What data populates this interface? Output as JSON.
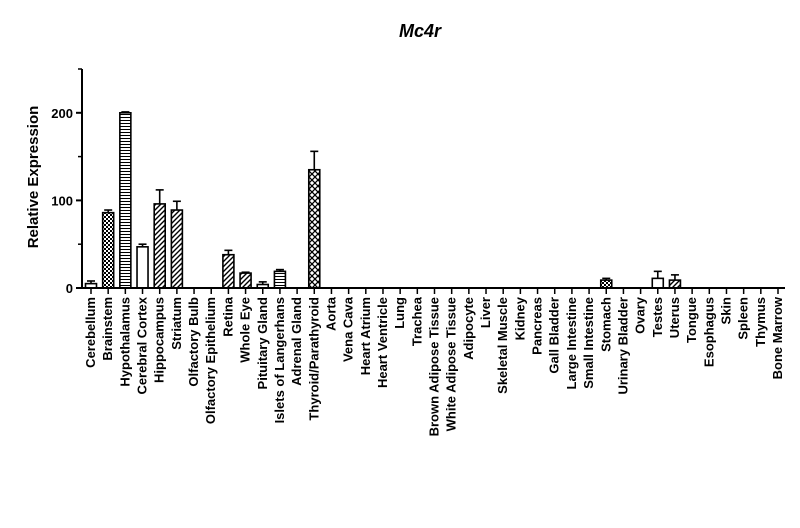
{
  "chart_data": {
    "type": "bar",
    "title": "Mc4r",
    "xlabel": "",
    "ylabel": "Relative Expression",
    "ylim": [
      0,
      250
    ],
    "yticks": [
      "0",
      "100",
      "200"
    ],
    "grid": false,
    "legend": "none",
    "categories": [
      {
        "name": "Cerebellum",
        "value": 5,
        "error": 3,
        "pattern": "plain"
      },
      {
        "name": "Brainstem",
        "value": 86,
        "error": 3,
        "pattern": "checker"
      },
      {
        "name": "Hypothalamus",
        "value": 200,
        "error": 1,
        "pattern": "hstripes"
      },
      {
        "name": "Cerebral Cortex",
        "value": 47,
        "error": 3,
        "pattern": "plain"
      },
      {
        "name": "Hippocampus",
        "value": 96,
        "error": 16,
        "pattern": "diag"
      },
      {
        "name": "Striatum",
        "value": 89,
        "error": 10,
        "pattern": "diag"
      },
      {
        "name": "Olfactory Bulb",
        "value": 0,
        "error": 0,
        "pattern": "plain"
      },
      {
        "name": "Olfactory Epithelium",
        "value": 0,
        "error": 0,
        "pattern": "plain"
      },
      {
        "name": "Retina",
        "value": 38,
        "error": 5,
        "pattern": "diag"
      },
      {
        "name": "Whole Eye",
        "value": 17,
        "error": 1,
        "pattern": "diag"
      },
      {
        "name": "Pituitary Gland",
        "value": 4,
        "error": 3,
        "pattern": "plain"
      },
      {
        "name": "Islets of Langerhans",
        "value": 19,
        "error": 2,
        "pattern": "hstripes"
      },
      {
        "name": "Adrenal Gland",
        "value": 0,
        "error": 0,
        "pattern": "plain"
      },
      {
        "name": "Thyroid/Parathyroid",
        "value": 135,
        "error": 21,
        "pattern": "cross"
      },
      {
        "name": "Aorta",
        "value": 0,
        "error": 0,
        "pattern": "plain"
      },
      {
        "name": "Vena Cava",
        "value": 0,
        "error": 0,
        "pattern": "plain"
      },
      {
        "name": "Heart Atrium",
        "value": 0,
        "error": 0,
        "pattern": "plain"
      },
      {
        "name": "Heart Ventricle",
        "value": 0,
        "error": 0,
        "pattern": "plain"
      },
      {
        "name": "Lung",
        "value": 0,
        "error": 0,
        "pattern": "plain"
      },
      {
        "name": "Trachea",
        "value": 0,
        "error": 0,
        "pattern": "plain"
      },
      {
        "name": "Brown Adipose Tissue",
        "value": 0,
        "error": 0,
        "pattern": "plain"
      },
      {
        "name": "White Adipose Tissue",
        "value": 0,
        "error": 0,
        "pattern": "plain"
      },
      {
        "name": "Adipocyte",
        "value": 0,
        "error": 0,
        "pattern": "plain"
      },
      {
        "name": "Liver",
        "value": 0,
        "error": 0,
        "pattern": "plain"
      },
      {
        "name": "Skeletal Muscle",
        "value": 0,
        "error": 0,
        "pattern": "plain"
      },
      {
        "name": "Kidney",
        "value": 0,
        "error": 0,
        "pattern": "plain"
      },
      {
        "name": "Pancreas",
        "value": 0,
        "error": 0,
        "pattern": "plain"
      },
      {
        "name": "Gall Bladder",
        "value": 0,
        "error": 0,
        "pattern": "plain"
      },
      {
        "name": "Large Intestine",
        "value": 0,
        "error": 0,
        "pattern": "plain"
      },
      {
        "name": "Small Intestine",
        "value": 0,
        "error": 0,
        "pattern": "plain"
      },
      {
        "name": "Stomach",
        "value": 9,
        "error": 2,
        "pattern": "checker"
      },
      {
        "name": "Urinary Bladder",
        "value": 0,
        "error": 0,
        "pattern": "plain"
      },
      {
        "name": "Ovary",
        "value": 0,
        "error": 0,
        "pattern": "plain"
      },
      {
        "name": "Testes",
        "value": 11,
        "error": 8,
        "pattern": "plain"
      },
      {
        "name": "Uterus",
        "value": 9,
        "error": 6,
        "pattern": "diag"
      },
      {
        "name": "Tongue",
        "value": 0,
        "error": 0,
        "pattern": "plain"
      },
      {
        "name": "Esophagus",
        "value": 0,
        "error": 0,
        "pattern": "plain"
      },
      {
        "name": "Skin",
        "value": 0,
        "error": 0,
        "pattern": "plain"
      },
      {
        "name": "Spleen",
        "value": 0,
        "error": 0,
        "pattern": "plain"
      },
      {
        "name": "Thymus",
        "value": 0,
        "error": 0,
        "pattern": "plain"
      },
      {
        "name": "Bone Marrow",
        "value": 0,
        "error": 0,
        "pattern": "plain"
      }
    ]
  }
}
